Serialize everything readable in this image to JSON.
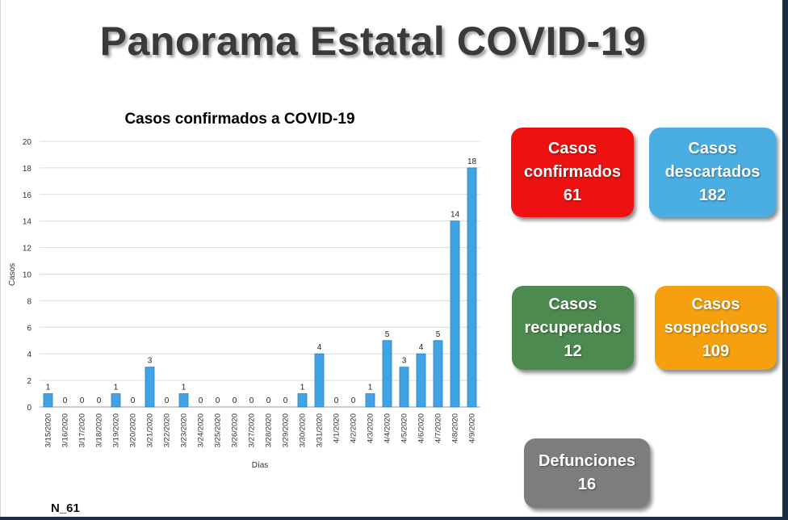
{
  "page": {
    "title": "Panorama Estatal COVID-19",
    "footnote": "N_61"
  },
  "cards": [
    {
      "line1": "Casos",
      "line2": "confirmados",
      "value": "61",
      "color": "#ee1111"
    },
    {
      "line1": "Casos",
      "line2": "descartados",
      "value": "182",
      "color": "#4aaee3"
    },
    {
      "line1": "Casos",
      "line2": "recuperados",
      "value": "12",
      "color": "#4c8a4f"
    },
    {
      "line1": "Casos",
      "line2": "sospechosos",
      "value": "109",
      "color": "#f4a00f"
    },
    {
      "line1": "Defunciones",
      "line2": "",
      "value": "16",
      "color": "#7d7d7d"
    }
  ],
  "chart_data": {
    "type": "bar",
    "title": "Casos confirmados a COVID-19",
    "xlabel": "Días",
    "ylabel": "Casos",
    "ylim": [
      0,
      20
    ],
    "yticks": [
      0,
      2,
      4,
      6,
      8,
      10,
      12,
      14,
      16,
      18,
      20
    ],
    "grid": true,
    "bar_color": "#3fa3e6",
    "categories": [
      "3/15/2020",
      "3/16/2020",
      "3/17/2020",
      "3/18/2020",
      "3/19/2020",
      "3/20/2020",
      "3/21/2020",
      "3/22/2020",
      "3/23/2020",
      "3/24/2020",
      "3/25/2020",
      "3/26/2020",
      "3/27/2020",
      "3/28/2020",
      "3/29/2020",
      "3/30/2020",
      "3/31/2020",
      "4/1/2020",
      "4/2/2020",
      "4/3/2020",
      "4/4/2020",
      "4/5/2020",
      "4/6/2020",
      "4/7/2020",
      "4/8/2020",
      "4/9/2020"
    ],
    "values": [
      1,
      0,
      0,
      0,
      1,
      0,
      3,
      0,
      1,
      0,
      0,
      0,
      0,
      0,
      0,
      1,
      4,
      0,
      0,
      1,
      5,
      3,
      4,
      5,
      14,
      18
    ]
  }
}
